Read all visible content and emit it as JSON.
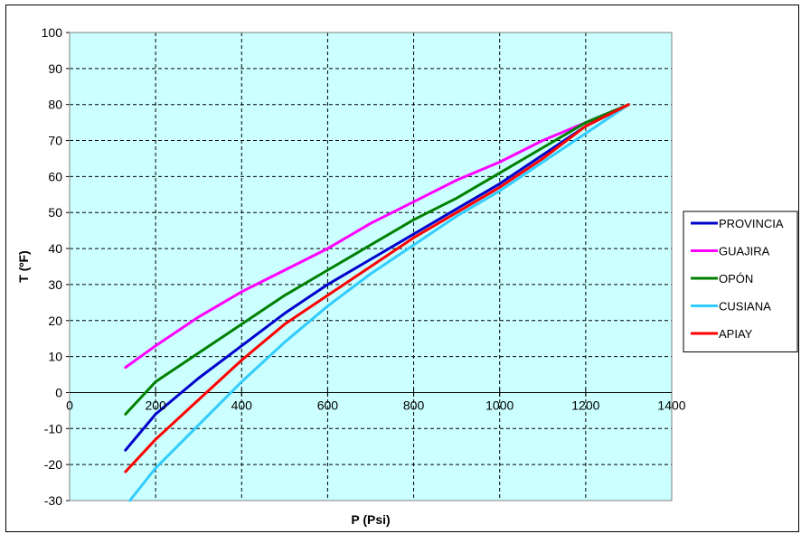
{
  "chart_data": {
    "type": "line",
    "xlabel": "P (Psi)",
    "ylabel": "T (ºF)",
    "xlim": [
      0,
      1400
    ],
    "ylim": [
      -30,
      100
    ],
    "x_ticks": [
      "0",
      "200",
      "400",
      "600",
      "800",
      "1000",
      "1200",
      "1400"
    ],
    "y_ticks": [
      "-30",
      "-20",
      "-10",
      "0",
      "10",
      "20",
      "30",
      "40",
      "50",
      "60",
      "70",
      "80",
      "90",
      "100"
    ],
    "grid": "dashed",
    "plot_background": "#ccffff",
    "legend_position": "right",
    "series": [
      {
        "name": "PROVINCIA",
        "color": "#0000cc",
        "x": [
          130,
          200,
          300,
          400,
          500,
          600,
          700,
          800,
          900,
          1000,
          1100,
          1200,
          1300
        ],
        "y": [
          -16,
          -6,
          4,
          13,
          22,
          30,
          37,
          44,
          51,
          58,
          66,
          74,
          80
        ]
      },
      {
        "name": "GUAJIRA",
        "color": "#ff00ff",
        "x": [
          130,
          200,
          300,
          400,
          500,
          600,
          700,
          800,
          900,
          1000,
          1100,
          1200,
          1300
        ],
        "y": [
          7,
          13,
          21,
          28,
          34,
          40,
          47,
          53,
          59,
          64,
          70,
          75,
          80
        ]
      },
      {
        "name": "OPÓN",
        "color": "#008000",
        "x": [
          130,
          200,
          300,
          400,
          500,
          600,
          700,
          800,
          900,
          1000,
          1100,
          1200,
          1300
        ],
        "y": [
          -6,
          3,
          11,
          19,
          27,
          34,
          41,
          48,
          54,
          61,
          68,
          75,
          80
        ]
      },
      {
        "name": "CUSIANA",
        "color": "#33ccff",
        "x": [
          140,
          200,
          300,
          400,
          500,
          600,
          700,
          800,
          900,
          1000,
          1100,
          1200,
          1300
        ],
        "y": [
          -30,
          -21,
          -9,
          3,
          14,
          24,
          33,
          41,
          49,
          56,
          64,
          72,
          80
        ]
      },
      {
        "name": "APIAY",
        "color": "#ff0000",
        "x": [
          130,
          200,
          300,
          400,
          500,
          600,
          700,
          800,
          900,
          1000,
          1100,
          1200,
          1300
        ],
        "y": [
          -22,
          -13,
          -2,
          9,
          19,
          27,
          35,
          43,
          50,
          57,
          65,
          74,
          80
        ]
      }
    ]
  }
}
